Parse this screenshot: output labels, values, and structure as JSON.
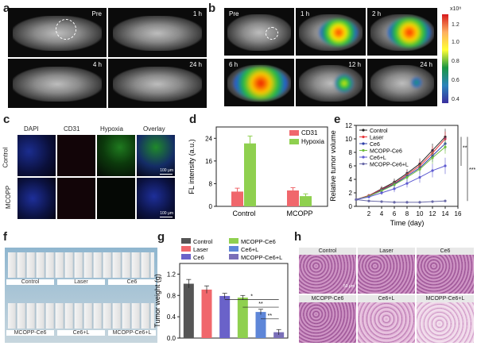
{
  "panels": {
    "a": "a",
    "b": "b",
    "c": "c",
    "d": "d",
    "e": "e",
    "f": "f",
    "g": "g",
    "h": "h"
  },
  "panel_a": {
    "tiles": [
      "Pre",
      "1 h",
      "4 h",
      "24 h"
    ]
  },
  "panel_b": {
    "tiles": [
      "Pre",
      "1 h",
      "2 h",
      "6 h",
      "12 h",
      "24 h"
    ],
    "colorbar": {
      "exponent": "x10⁸",
      "ticks": [
        "1.2",
        "1.0",
        "0.8",
        "0.6",
        "0.4"
      ],
      "colors": [
        "#d7191c",
        "#fdae61",
        "#ffff33",
        "#1a9641",
        "#2b83ba",
        "#3a2f9e"
      ]
    }
  },
  "panel_c": {
    "columns": [
      "DAPI",
      "CD31",
      "Hypoxia",
      "Overlay"
    ],
    "rows": [
      "Control",
      "MCOPP"
    ],
    "scale": "100 μm"
  },
  "panel_d": {
    "chart_data": {
      "type": "bar",
      "categories": [
        "Control",
        "MCOPP"
      ],
      "series": [
        {
          "name": "CD31",
          "color": "#f0676c",
          "values": [
            5.2,
            5.6
          ],
          "errors": [
            1.2,
            1.0
          ]
        },
        {
          "name": "Hypoxia",
          "color": "#8fd04f",
          "values": [
            22.2,
            3.6
          ],
          "errors": [
            2.6,
            0.8
          ]
        }
      ],
      "ylabel": "FL intensity (a.u.)",
      "ylim": [
        0,
        28
      ],
      "yticks": [
        0,
        8,
        16,
        24
      ]
    }
  },
  "panel_e": {
    "chart_data": {
      "type": "line",
      "xlabel": "Time (day)",
      "ylabel": "Relative tumor volume",
      "x": [
        0,
        2,
        4,
        6,
        8,
        10,
        12,
        14
      ],
      "xlim": [
        0,
        16
      ],
      "xticks": [
        2,
        4,
        6,
        8,
        10,
        12,
        14,
        16
      ],
      "ylim": [
        0,
        12
      ],
      "yticks": [
        0,
        2,
        4,
        6,
        8,
        10,
        12
      ],
      "series": [
        {
          "name": "Control",
          "color": "#222222",
          "values": [
            1,
            1.6,
            2.6,
            3.6,
            4.9,
            6.3,
            8.3,
            10.3
          ],
          "err": [
            0,
            0.2,
            0.4,
            0.5,
            0.6,
            0.8,
            1.0,
            1.2
          ]
        },
        {
          "name": "Laser",
          "color": "#e8383d",
          "values": [
            1,
            1.6,
            2.5,
            3.4,
            4.7,
            6.0,
            7.9,
            10.0
          ],
          "err": [
            0,
            0.2,
            0.4,
            0.5,
            0.6,
            0.8,
            1.0,
            1.1
          ]
        },
        {
          "name": "Ce6",
          "color": "#2c3ea8",
          "values": [
            1,
            1.5,
            2.4,
            3.3,
            4.5,
            5.7,
            7.5,
            9.3
          ],
          "err": [
            0,
            0.2,
            0.4,
            0.5,
            0.6,
            0.7,
            0.9,
            1.0
          ]
        },
        {
          "name": "MCOPP-Ce6",
          "color": "#6fbe3c",
          "values": [
            1,
            1.5,
            2.3,
            3.2,
            4.3,
            5.5,
            7.2,
            8.8
          ],
          "err": [
            0,
            0.2,
            0.4,
            0.5,
            0.6,
            0.7,
            0.9,
            1.0
          ]
        },
        {
          "name": "Ce6+L",
          "color": "#5e5bd1",
          "values": [
            1,
            1.4,
            2.0,
            2.6,
            3.4,
            4.3,
            5.3,
            6.0
          ],
          "err": [
            0,
            0.2,
            0.3,
            0.5,
            0.6,
            0.8,
            1.0,
            1.2
          ]
        },
        {
          "name": "MCOPP-Ce6+L",
          "color": "#6a6aa8",
          "values": [
            1,
            0.8,
            0.7,
            0.6,
            0.6,
            0.6,
            0.7,
            0.8
          ],
          "err": [
            0,
            0.2,
            0.2,
            0.2,
            0.2,
            0.2,
            0.2,
            0.2
          ]
        }
      ],
      "sig": [
        "**",
        "***"
      ]
    }
  },
  "panel_f": {
    "top": [
      "Control",
      "Laser",
      "Ce6"
    ],
    "bottom": [
      "MCOPP-Ce6",
      "Ce6+L",
      "MCOPP-Ce6+L"
    ]
  },
  "panel_g": {
    "chart_data": {
      "type": "bar",
      "ylabel": "Tumor weight (g)",
      "ylim": [
        0,
        1.4
      ],
      "yticks": [
        "0.0",
        "0.4",
        "0.8",
        "1.2"
      ],
      "categories": [
        "Control",
        "Laser",
        "Ce6",
        "MCOPP-Ce6",
        "Ce6+L",
        "MCOPP-Ce6+L"
      ],
      "colors": [
        "#555555",
        "#f0676c",
        "#6a62c9",
        "#8fd04f",
        "#5e86d8",
        "#7a6fb8"
      ],
      "values": [
        1.02,
        0.91,
        0.79,
        0.76,
        0.49,
        0.11
      ],
      "errors": [
        0.08,
        0.07,
        0.05,
        0.04,
        0.05,
        0.05
      ],
      "sig": [
        "*",
        "**",
        "**"
      ]
    }
  },
  "panel_h": {
    "labels": [
      "Control",
      "Laser",
      "Ce6",
      "MCOPP-Ce6",
      "Ce6+L",
      "MCOPP-Ce6+L"
    ],
    "scale": "50 μm"
  }
}
